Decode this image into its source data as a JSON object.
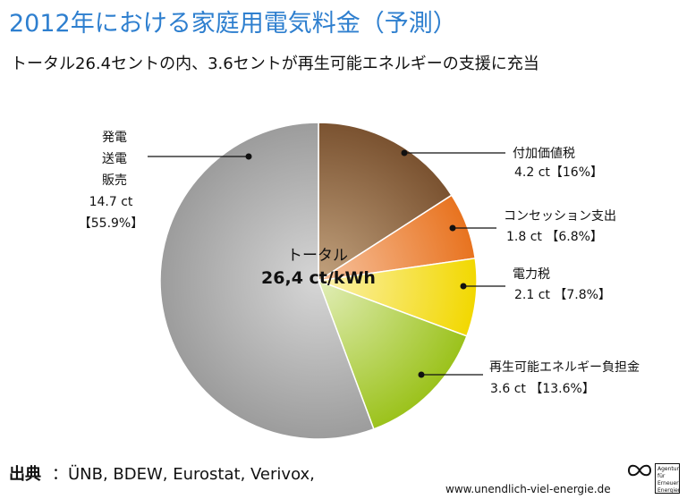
{
  "header": {
    "title": "2012年における家庭用電気料金（予測）",
    "subtitle": "トータル26.4セントの内、3.6セントが再生可能エネルギーの支援に充当"
  },
  "chart_data": {
    "type": "pie",
    "center_label": "トータル",
    "center_value": "26,4 ct/kWh",
    "slices": [
      {
        "name": "付加価値税",
        "value_text": "4.2 ct【16%】",
        "value": 4.2,
        "percent": 16.0,
        "color": "#7a5230",
        "color_light": "#c2a27e"
      },
      {
        "name": "コンセッション支出",
        "value_text": "1.8 ct 【6.8%】",
        "value": 1.8,
        "percent": 6.8,
        "color": "#e8731f",
        "color_light": "#f7c3a0"
      },
      {
        "name": "電力税",
        "value_text": "2.1 ct 【7.8%】",
        "value": 2.1,
        "percent": 7.8,
        "color": "#f2d800",
        "color_light": "#fbf1b0"
      },
      {
        "name": "再生可能エネルギー負担金",
        "value_text": "3.6 ct 【13.6%】",
        "value": 3.6,
        "percent": 13.6,
        "color": "#9bc21b",
        "color_light": "#e2eeb8"
      },
      {
        "name_lines": [
          "発電",
          "送電",
          "販売"
        ],
        "value_text_lines": [
          "14.7 ct",
          "【55.9%】"
        ],
        "value": 14.7,
        "percent": 55.9,
        "color": "#9c9c9c",
        "color_light": "#d6d6d6"
      }
    ]
  },
  "footer": {
    "source_label": "出典",
    "source_text": "：ÜNB, BDEW, Eurostat, Verivox,",
    "url": "www.unendlich-viel-energie.de",
    "logo_text": "Agentur für Erneuerbare Energien"
  }
}
